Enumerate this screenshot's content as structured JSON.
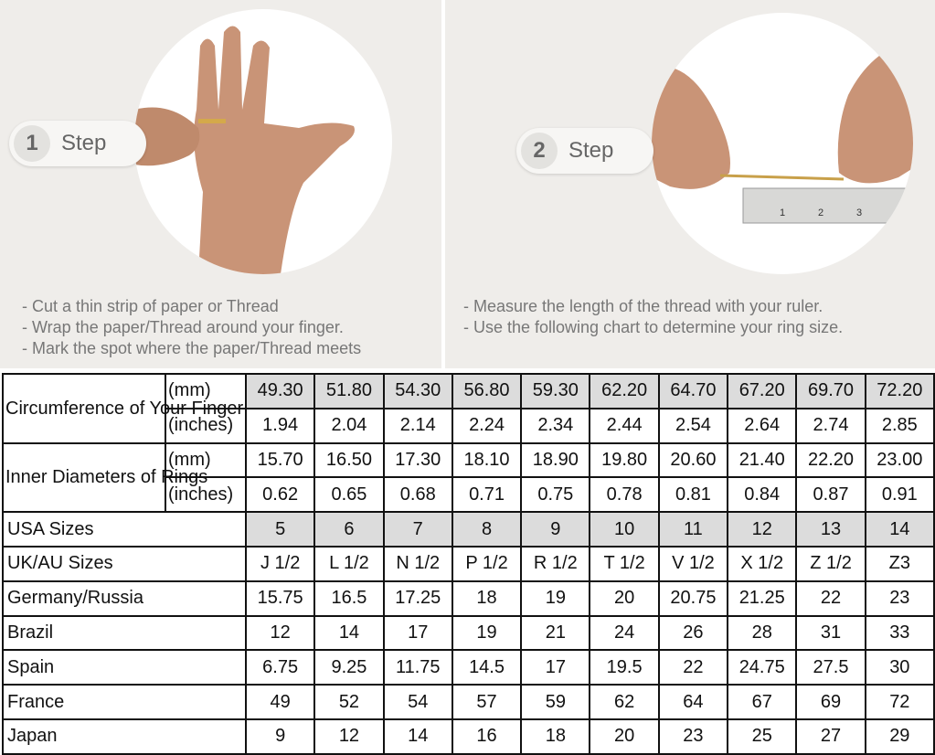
{
  "steps": [
    {
      "number": "1",
      "label": "Step",
      "instructions": [
        "- Cut a thin strip of paper or Thread",
        "- Wrap the paper/Thread around your finger.",
        "- Mark the spot where the paper/Thread meets"
      ]
    },
    {
      "number": "2",
      "label": "Step",
      "instructions": [
        "- Measure the length of the thread with your ruler.",
        "- Use the following chart to determine your ring size."
      ]
    }
  ],
  "ruler_marks": [
    "1",
    "2",
    "3"
  ],
  "colors": {
    "panel_bg": "#efedea",
    "shaded_cell": "#dcdcdc",
    "border": "#111111"
  },
  "table": {
    "groups": [
      {
        "label": "Circumference of Your Finger",
        "rows": [
          {
            "unit": "(mm)",
            "shaded": true,
            "values": [
              "49.30",
              "51.80",
              "54.30",
              "56.80",
              "59.30",
              "62.20",
              "64.70",
              "67.20",
              "69.70",
              "72.20"
            ]
          },
          {
            "unit": "(inches)",
            "shaded": false,
            "values": [
              "1.94",
              "2.04",
              "2.14",
              "2.24",
              "2.34",
              "2.44",
              "2.54",
              "2.64",
              "2.74",
              "2.85"
            ]
          }
        ]
      },
      {
        "label": "Inner Diameters of Rings",
        "rows": [
          {
            "unit": "(mm)",
            "shaded": false,
            "values": [
              "15.70",
              "16.50",
              "17.30",
              "18.10",
              "18.90",
              "19.80",
              "20.60",
              "21.40",
              "22.20",
              "23.00"
            ]
          },
          {
            "unit": "(inches)",
            "shaded": false,
            "values": [
              "0.62",
              "0.65",
              "0.68",
              "0.71",
              "0.75",
              "0.78",
              "0.81",
              "0.84",
              "0.87",
              "0.91"
            ]
          }
        ]
      }
    ],
    "rows": [
      {
        "label": "USA Sizes",
        "shaded": true,
        "values": [
          "5",
          "6",
          "7",
          "8",
          "9",
          "10",
          "11",
          "12",
          "13",
          "14"
        ]
      },
      {
        "label": "UK/AU Sizes",
        "shaded": false,
        "values": [
          "J 1/2",
          "L 1/2",
          "N 1/2",
          "P 1/2",
          "R 1/2",
          "T 1/2",
          "V 1/2",
          "X 1/2",
          "Z 1/2",
          "Z3"
        ]
      },
      {
        "label": "Germany/Russia",
        "shaded": false,
        "values": [
          "15.75",
          "16.5",
          "17.25",
          "18",
          "19",
          "20",
          "20.75",
          "21.25",
          "22",
          "23"
        ]
      },
      {
        "label": "Brazil",
        "shaded": false,
        "values": [
          "12",
          "14",
          "17",
          "19",
          "21",
          "24",
          "26",
          "28",
          "31",
          "33"
        ]
      },
      {
        "label": "Spain",
        "shaded": false,
        "values": [
          "6.75",
          "9.25",
          "11.75",
          "14.5",
          "17",
          "19.5",
          "22",
          "24.75",
          "27.5",
          "30"
        ]
      },
      {
        "label": "France",
        "shaded": false,
        "values": [
          "49",
          "52",
          "54",
          "57",
          "59",
          "62",
          "64",
          "67",
          "69",
          "72"
        ]
      },
      {
        "label": "Japan",
        "shaded": false,
        "values": [
          "9",
          "12",
          "14",
          "16",
          "18",
          "20",
          "23",
          "25",
          "27",
          "29"
        ]
      }
    ]
  }
}
